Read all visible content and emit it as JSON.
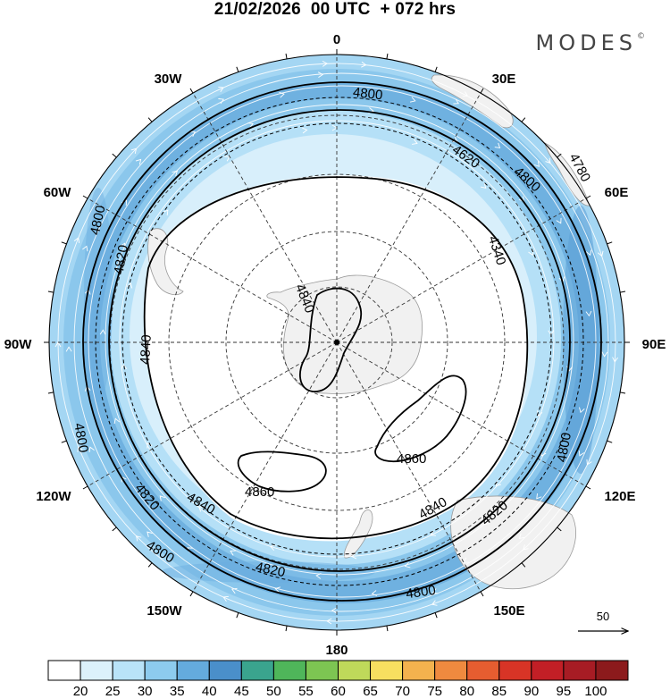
{
  "title": "21/02/2026  00 UTC  + 072 hrs",
  "brand": "MODES",
  "brand_mark": "©",
  "longitude_labels": {
    "n0": "0",
    "e30": "30E",
    "e60": "60E",
    "e90": "90E",
    "e120": "120E",
    "e150": "150E",
    "s180": "180",
    "w150": "150W",
    "w120": "120W",
    "w90": "90W",
    "w60": "60W",
    "w30": "30W"
  },
  "contour_labels": [
    {
      "id": "c1",
      "text": "4800"
    },
    {
      "id": "c2",
      "text": "4620"
    },
    {
      "id": "c3",
      "text": "4800"
    },
    {
      "id": "c4",
      "text": "4780"
    },
    {
      "id": "c5",
      "text": "4340"
    },
    {
      "id": "c6",
      "text": "4800"
    },
    {
      "id": "c7",
      "text": "4820"
    },
    {
      "id": "c8",
      "text": "4840"
    },
    {
      "id": "c9",
      "text": "4840"
    },
    {
      "id": "c10",
      "text": "4800"
    },
    {
      "id": "c11",
      "text": "4820"
    },
    {
      "id": "c12",
      "text": "4840"
    },
    {
      "id": "c13",
      "text": "4860"
    },
    {
      "id": "c14",
      "text": "4860"
    },
    {
      "id": "c15",
      "text": "4840"
    },
    {
      "id": "c16",
      "text": "4820"
    },
    {
      "id": "c17",
      "text": "4800"
    },
    {
      "id": "c18",
      "text": "4800"
    },
    {
      "id": "c19",
      "text": "4820"
    },
    {
      "id": "c20",
      "text": "4800"
    }
  ],
  "reference_vector": "50",
  "colorbar": {
    "colors": [
      "#ffffff",
      "#dcf1fb",
      "#b9e3f8",
      "#8dcbee",
      "#64abdd",
      "#4a8fca",
      "#3aa48e",
      "#4fb65a",
      "#7dc552",
      "#bfd95a",
      "#f7df60",
      "#f4b24e",
      "#ef8a3f",
      "#e65d30",
      "#d83426",
      "#c21f26",
      "#a71c24",
      "#8c1a1c"
    ],
    "labels": [
      "20",
      "25",
      "30",
      "35",
      "40",
      "45",
      "50",
      "55",
      "60",
      "65",
      "70",
      "75",
      "80",
      "85",
      "90",
      "95",
      "100"
    ]
  }
}
